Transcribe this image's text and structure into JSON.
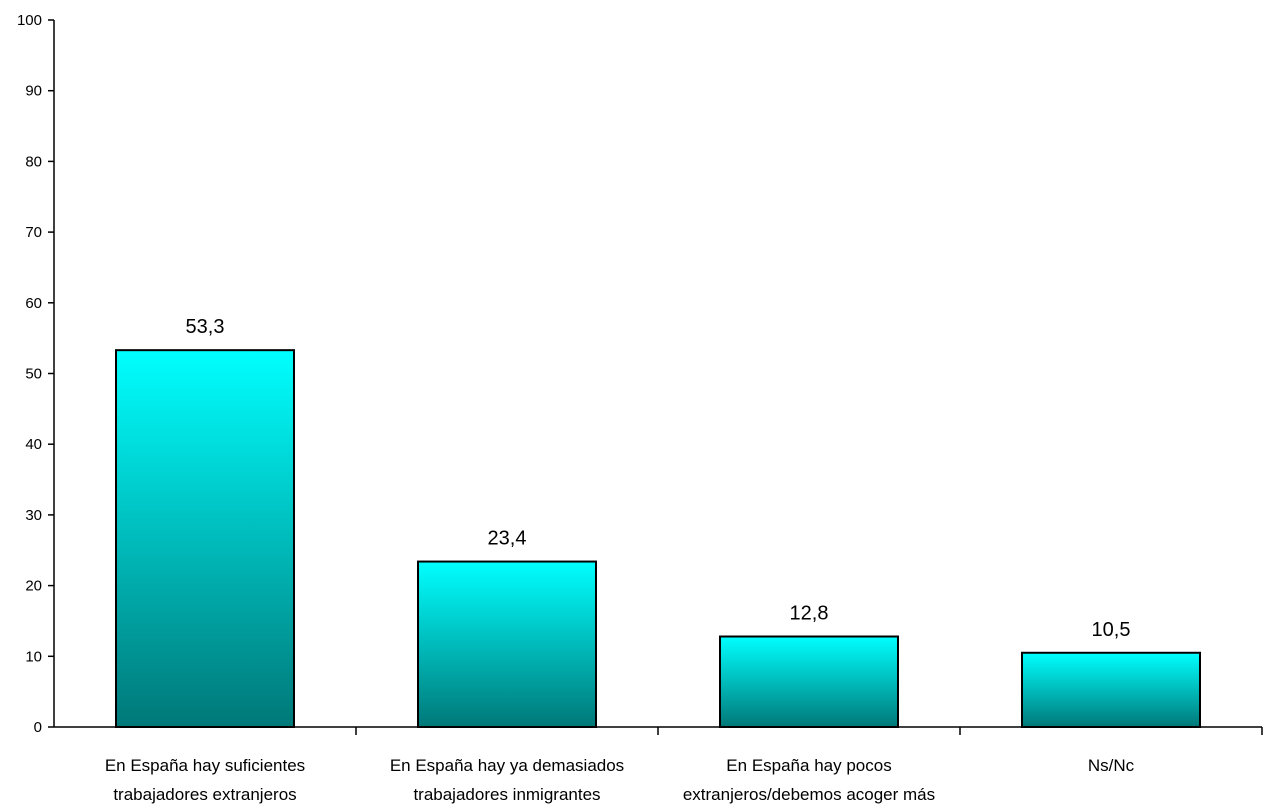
{
  "chart_data": {
    "type": "bar",
    "categories": [
      [
        "En España hay suficientes",
        "trabajadores extranjeros"
      ],
      [
        "En España hay ya demasiados",
        "trabajadores inmigrantes"
      ],
      [
        "En España hay pocos",
        "extranjeros/debemos acoger más"
      ],
      [
        "Ns/Nc"
      ]
    ],
    "values": [
      53.3,
      23.4,
      12.8,
      10.5
    ],
    "value_labels": [
      "53,3",
      "23,4",
      "12,8",
      "10,5"
    ],
    "ylim": [
      0,
      100
    ],
    "yticks": [
      0,
      10,
      20,
      30,
      40,
      50,
      60,
      70,
      80,
      90,
      100
    ],
    "ytick_labels": [
      "0",
      "10",
      "20",
      "30",
      "40",
      "50",
      "60",
      "70",
      "80",
      "90",
      "100"
    ],
    "grid": false,
    "legend": "none",
    "colors": {
      "bar_top": "#00FFFF",
      "bar_bottom": "#007878",
      "bar_edge": "#000000",
      "axis": "#000000"
    }
  }
}
